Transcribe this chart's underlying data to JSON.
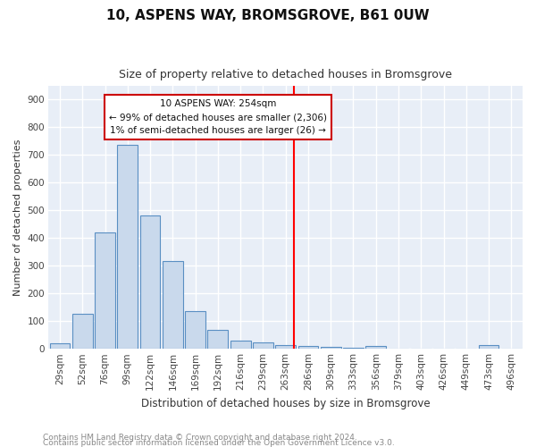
{
  "title": "10, ASPENS WAY, BROMSGROVE, B61 0UW",
  "subtitle": "Size of property relative to detached houses in Bromsgrove",
  "xlabel": "Distribution of detached houses by size in Bromsgrove",
  "ylabel": "Number of detached properties",
  "footnote1": "Contains HM Land Registry data © Crown copyright and database right 2024.",
  "footnote2": "Contains public sector information licensed under the Open Government Licence v3.0.",
  "bar_labels": [
    "29sqm",
    "52sqm",
    "76sqm",
    "99sqm",
    "122sqm",
    "146sqm",
    "169sqm",
    "192sqm",
    "216sqm",
    "239sqm",
    "263sqm",
    "286sqm",
    "309sqm",
    "333sqm",
    "356sqm",
    "379sqm",
    "403sqm",
    "426sqm",
    "449sqm",
    "473sqm",
    "496sqm"
  ],
  "bar_values": [
    20,
    125,
    420,
    735,
    480,
    315,
    135,
    68,
    28,
    22,
    12,
    10,
    5,
    2,
    10,
    1,
    1,
    1,
    1,
    12,
    1
  ],
  "bar_color": "#c9d9ec",
  "bar_edgecolor": "#5a8fc3",
  "bg_color": "#e8eef7",
  "grid_color": "#ffffff",
  "red_line_x": 10.35,
  "annotation_text": "10 ASPENS WAY: 254sqm\n← 99% of detached houses are smaller (2,306)\n1% of semi-detached houses are larger (26) →",
  "annotation_box_facecolor": "#ffffff",
  "annotation_box_edgecolor": "#cc0000",
  "ylim": [
    0,
    950
  ],
  "yticks": [
    0,
    100,
    200,
    300,
    400,
    500,
    600,
    700,
    800,
    900
  ],
  "title_fontsize": 11,
  "subtitle_fontsize": 9,
  "ylabel_fontsize": 8,
  "xlabel_fontsize": 8.5,
  "tick_fontsize": 7.5,
  "footnote_fontsize": 6.5
}
